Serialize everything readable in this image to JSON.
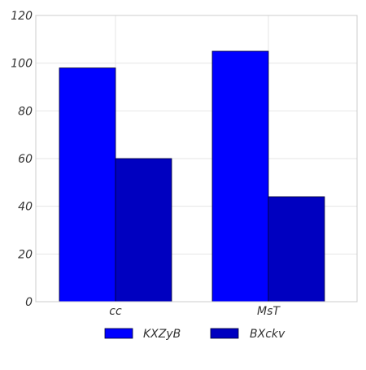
{
  "chart_data": {
    "type": "bar",
    "categories": [
      "cc",
      "MsT"
    ],
    "series": [
      {
        "name": "KXZyB",
        "values": [
          98,
          105
        ],
        "color": "#0000ff"
      },
      {
        "name": "BXckv",
        "values": [
          60,
          44
        ],
        "color": "#0000c0"
      }
    ],
    "ylim": [
      0,
      120
    ],
    "yticks": [
      0,
      20,
      40,
      60,
      80,
      100,
      120
    ],
    "grid": true,
    "legend_position": "bottom-center",
    "xlabel": "",
    "ylabel": "",
    "title": ""
  }
}
